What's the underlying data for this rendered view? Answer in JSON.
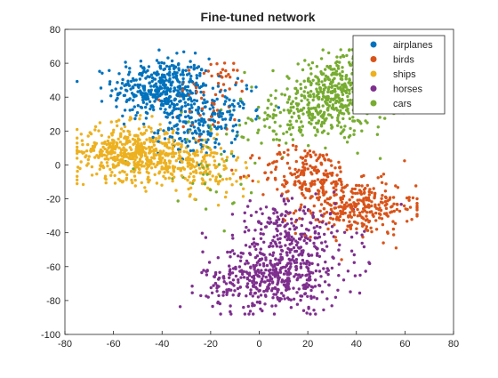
{
  "chart_data": {
    "type": "scatter",
    "title": "Fine-tuned network",
    "xlabel": "",
    "ylabel": "",
    "xlim": [
      -80,
      80
    ],
    "ylim": [
      -100,
      80
    ],
    "xticks": [
      -80,
      -60,
      -40,
      -20,
      0,
      20,
      40,
      60,
      80
    ],
    "yticks": [
      -100,
      -80,
      -60,
      -40,
      -20,
      0,
      20,
      40,
      60,
      80
    ],
    "grid": false,
    "legend_position": "top-right",
    "series": [
      {
        "name": "airplanes",
        "color": "#0072BD",
        "clusters": [
          {
            "cx": -40,
            "cy": 45,
            "sx": 10,
            "sy": 9,
            "n": 420
          },
          {
            "cx": -25,
            "cy": 22,
            "sx": 8,
            "sy": 8,
            "n": 160
          },
          {
            "cx": -10,
            "cy": 35,
            "sx": 6,
            "sy": 8,
            "n": 40
          }
        ]
      },
      {
        "name": "birds",
        "color": "#D95319",
        "clusters": [
          {
            "cx": 40,
            "cy": -25,
            "sx": 12,
            "sy": 8,
            "n": 300
          },
          {
            "cx": 20,
            "cy": -5,
            "sx": 10,
            "sy": 8,
            "n": 180
          },
          {
            "cx": -20,
            "cy": 40,
            "sx": 8,
            "sy": 12,
            "n": 50
          },
          {
            "cx": -12,
            "cy": 55,
            "sx": 3,
            "sy": 5,
            "n": 12
          }
        ]
      },
      {
        "name": "ships",
        "color": "#EDB120",
        "clusters": [
          {
            "cx": -55,
            "cy": 8,
            "sx": 10,
            "sy": 8,
            "n": 400
          },
          {
            "cx": -35,
            "cy": 3,
            "sx": 10,
            "sy": 7,
            "n": 220
          },
          {
            "cx": -18,
            "cy": -5,
            "sx": 8,
            "sy": 8,
            "n": 60
          }
        ]
      },
      {
        "name": "horses",
        "color": "#7E2F8E",
        "clusters": [
          {
            "cx": 5,
            "cy": -68,
            "sx": 14,
            "sy": 9,
            "n": 420
          },
          {
            "cx": 15,
            "cy": -45,
            "sx": 12,
            "sy": 10,
            "n": 220
          },
          {
            "cx": 5,
            "cy": -30,
            "sx": 8,
            "sy": 6,
            "n": 40
          }
        ]
      },
      {
        "name": "cars",
        "color": "#77AC30",
        "clusters": [
          {
            "cx": 30,
            "cy": 38,
            "sx": 12,
            "sy": 10,
            "n": 420
          },
          {
            "cx": 40,
            "cy": 55,
            "sx": 8,
            "sy": 7,
            "n": 120
          },
          {
            "cx": 8,
            "cy": 25,
            "sx": 8,
            "sy": 6,
            "n": 60
          },
          {
            "cx": -20,
            "cy": 0,
            "sx": 14,
            "sy": 15,
            "n": 40
          }
        ]
      }
    ]
  }
}
